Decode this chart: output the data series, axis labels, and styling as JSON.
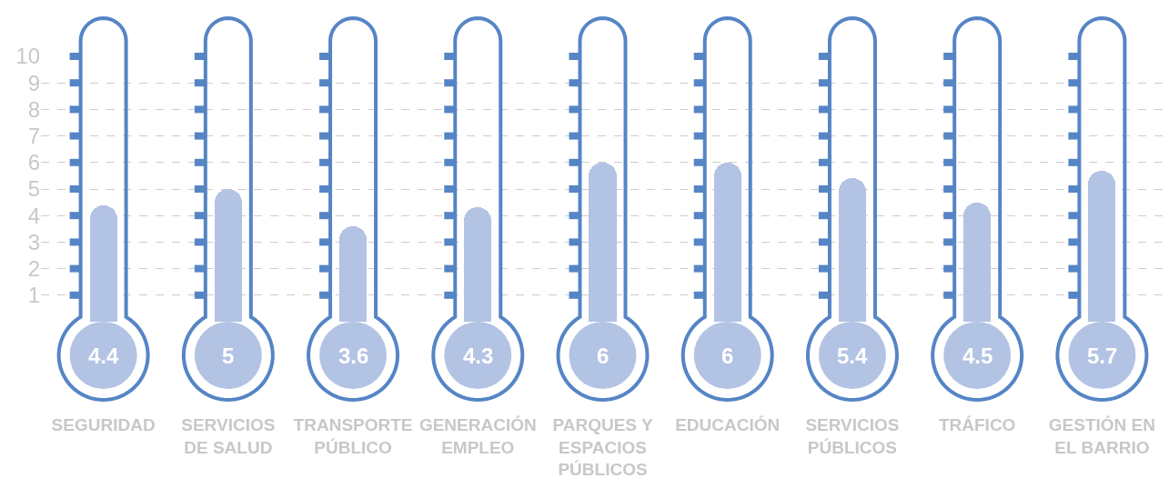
{
  "chart_data": {
    "type": "bar",
    "categories": [
      "SEGURIDAD",
      "SERVICIOS\nDE SALUD",
      "TRANSPORTE\nPÚBLICO",
      "GENERACIÓN\nEMPLEO",
      "PARQUES Y\nESPACIOS\nPÚBLICOS",
      "EDUCACIÓN",
      "SERVICIOS\nPÚBLICOS",
      "TRÁFICO",
      "GESTIÓN EN\nEL BARRIO"
    ],
    "values": [
      4.4,
      5,
      3.6,
      4.3,
      6,
      6,
      5.4,
      4.5,
      5.7
    ],
    "color": "#b3c3e4",
    "ylim": [
      0,
      10
    ],
    "yticks": [
      1,
      2,
      3,
      4,
      5,
      6,
      7,
      8,
      9,
      10
    ],
    "grid": "y",
    "data_labels": true
  }
}
